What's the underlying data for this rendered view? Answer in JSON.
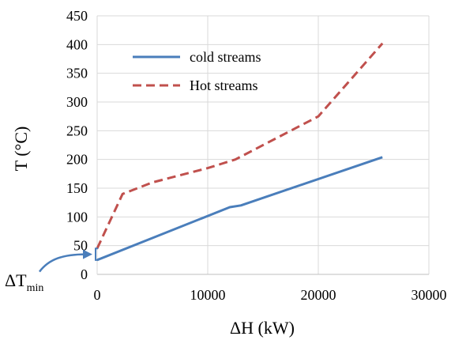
{
  "chart_data": {
    "type": "line",
    "xlabel": "ΔH (kW)",
    "ylabel": "T (°C)",
    "xlim": [
      0,
      30000
    ],
    "ylim": [
      0,
      450
    ],
    "xticks": [
      "0",
      "10000",
      "20000",
      "30000"
    ],
    "yticks": [
      "0",
      "50",
      "100",
      "150",
      "200",
      "250",
      "300",
      "350",
      "400",
      "450"
    ],
    "grid": true,
    "legend_position": "top-left",
    "series": [
      {
        "name": "cold streams",
        "color": "#4a7ebb",
        "style": "solid",
        "x": [
          0,
          12000,
          13000,
          25800
        ],
        "y": [
          25,
          117,
          120,
          204
        ]
      },
      {
        "name": "Hot streams",
        "color": "#c0504d",
        "style": "dashed",
        "x": [
          0,
          2300,
          5000,
          10000,
          12500,
          20000,
          25800
        ],
        "y": [
          45,
          140,
          160,
          185,
          200,
          275,
          402
        ]
      }
    ],
    "annotation": {
      "text": "ΔT",
      "subscript": "min",
      "bracket_y": [
        25,
        45
      ]
    }
  }
}
